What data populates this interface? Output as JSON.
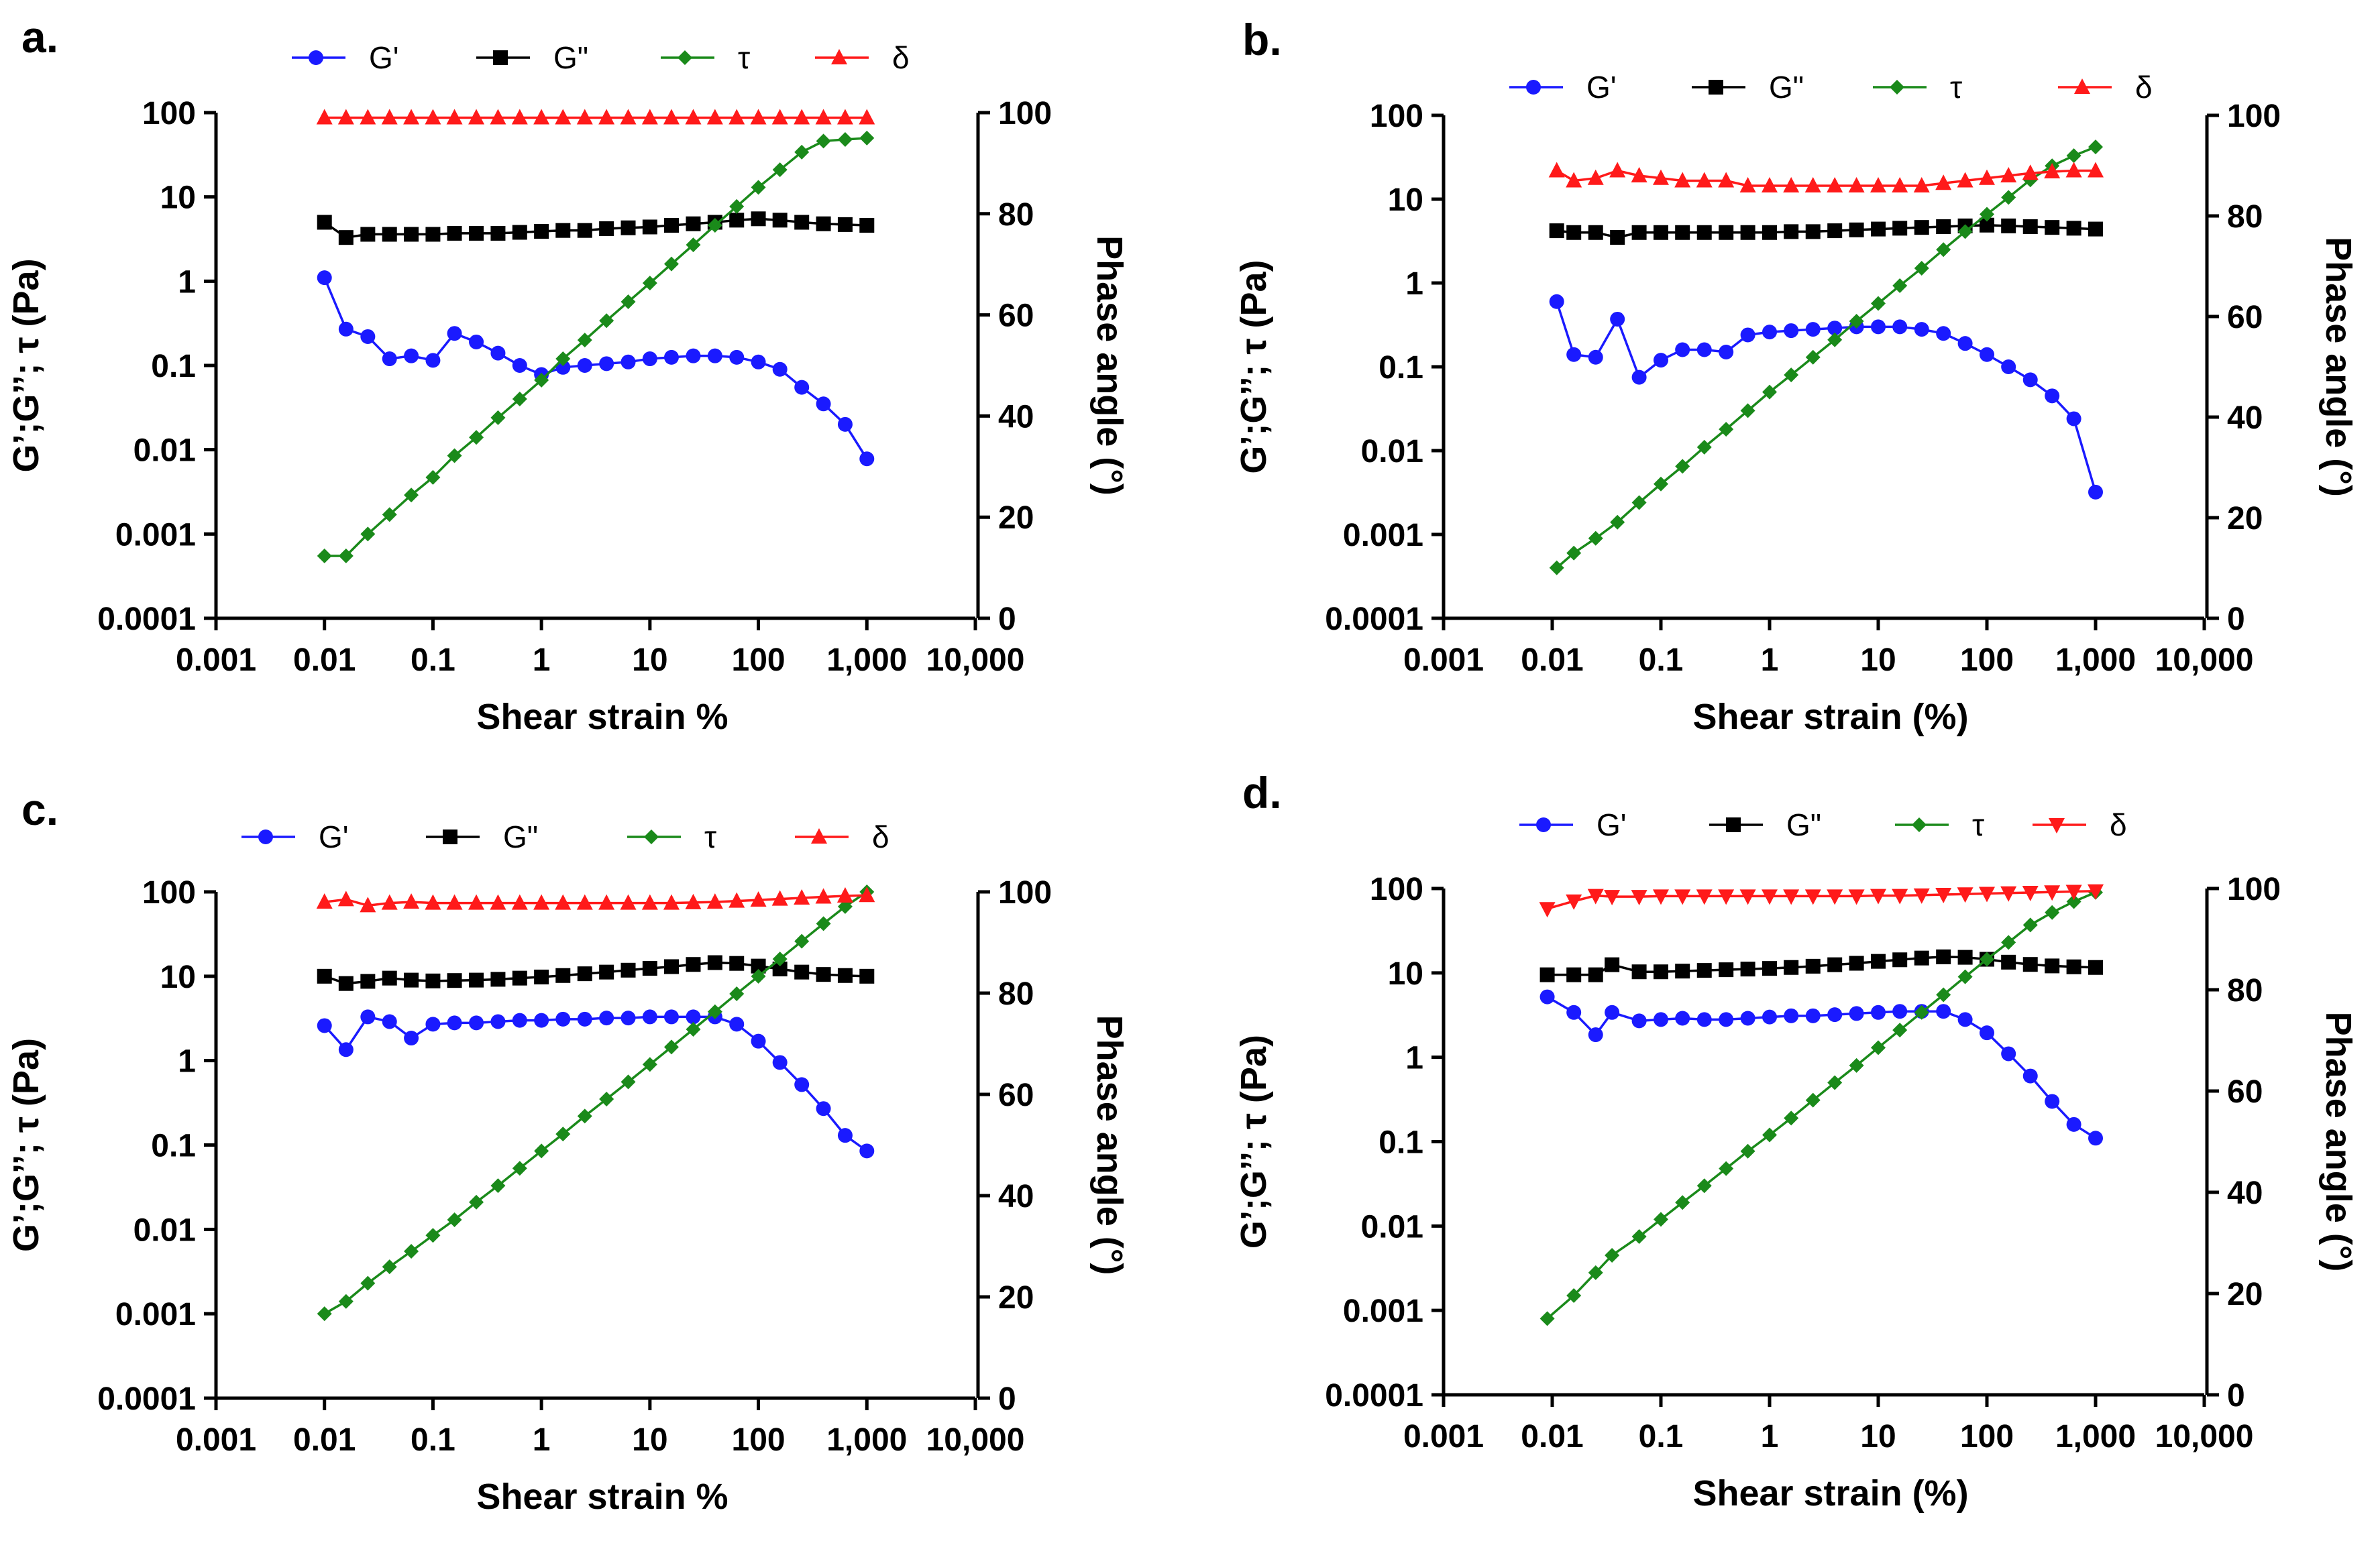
{
  "chart_data": [
    {
      "panel": "a.",
      "type": "line",
      "xscale": "log",
      "yscale": "log",
      "xlabel": "Shear strain %",
      "ylabel": "G’;G’’; τ (Pa)",
      "y2label": "Phase angle (°)",
      "xlim": [
        0.001,
        10000
      ],
      "ylim": [
        0.0001,
        100
      ],
      "y2lim": [
        0,
        100
      ],
      "x_tick_labels": [
        "0.001",
        "0.01",
        "0.1",
        "1",
        "10",
        "100",
        "1,000",
        "10,000"
      ],
      "y_tick_labels": [
        "0.0001",
        "0.001",
        "0.01",
        "0.1",
        "1",
        "10",
        "100"
      ],
      "y2_tick_labels": [
        "0",
        "20",
        "40",
        "60",
        "80",
        "100"
      ],
      "legend": [
        "G'",
        "G\"",
        "τ",
        "δ"
      ],
      "x": [
        0.01,
        0.0158,
        0.0251,
        0.0398,
        0.0631,
        0.1,
        0.158,
        0.251,
        0.398,
        0.631,
        1,
        1.58,
        2.51,
        3.98,
        6.31,
        10,
        15.8,
        25.1,
        39.8,
        63.1,
        100,
        158,
        251,
        398,
        631,
        1000
      ],
      "series": [
        {
          "name": "G'",
          "axis": "left",
          "color": "#1a1aff",
          "marker": "circle",
          "values": [
            1.1,
            0.27,
            0.22,
            0.12,
            0.13,
            0.115,
            0.24,
            0.19,
            0.14,
            0.1,
            0.078,
            0.095,
            0.1,
            0.105,
            0.11,
            0.12,
            0.125,
            0.13,
            0.13,
            0.125,
            0.11,
            0.09,
            0.055,
            0.035,
            0.02,
            0.0078
          ]
        },
        {
          "name": "G\"",
          "axis": "left",
          "color": "#000000",
          "marker": "square",
          "values": [
            5.0,
            3.3,
            3.6,
            3.6,
            3.6,
            3.6,
            3.7,
            3.7,
            3.7,
            3.8,
            3.9,
            4.0,
            4.0,
            4.2,
            4.3,
            4.4,
            4.6,
            4.8,
            5.0,
            5.3,
            5.5,
            5.3,
            5.0,
            4.8,
            4.7,
            4.6
          ]
        },
        {
          "name": "τ",
          "axis": "left",
          "color": "#1a8a1a",
          "marker": "diamond",
          "values": [
            0.00055,
            0.00055,
            0.001,
            0.0017,
            0.0029,
            0.0047,
            0.0085,
            0.014,
            0.024,
            0.04,
            0.067,
            0.12,
            0.2,
            0.34,
            0.57,
            0.95,
            1.6,
            2.7,
            4.6,
            7.7,
            13,
            21,
            34,
            46,
            48,
            50
          ]
        },
        {
          "name": "δ",
          "axis": "right",
          "color": "#ff1a1a",
          "marker": "triangle-up",
          "values": [
            99,
            99,
            99,
            99,
            99,
            99,
            99,
            99,
            99,
            99,
            99,
            99,
            99,
            99,
            99,
            99,
            99,
            99,
            99,
            99,
            99,
            99,
            99,
            99,
            99,
            99
          ]
        }
      ]
    },
    {
      "panel": "b.",
      "type": "line",
      "xscale": "log",
      "yscale": "log",
      "xlabel": "Shear strain (%)",
      "ylabel": "G’;G’’; τ (Pa)",
      "y2label": "Phase angle (°)",
      "xlim": [
        0.001,
        10000
      ],
      "ylim": [
        0.0001,
        100
      ],
      "y2lim": [
        0,
        100
      ],
      "x_tick_labels": [
        "0.001",
        "0.01",
        "0.1",
        "1",
        "10",
        "100",
        "1,000",
        "10,000"
      ],
      "y_tick_labels": [
        "0.0001",
        "0.001",
        "0.01",
        "0.1",
        "1",
        "10",
        "100"
      ],
      "y2_tick_labels": [
        "0",
        "20",
        "40",
        "60",
        "80",
        "100"
      ],
      "legend": [
        "G'",
        "G\"",
        "τ",
        "δ"
      ],
      "x": [
        0.011,
        0.0158,
        0.0251,
        0.0398,
        0.0631,
        0.1,
        0.158,
        0.251,
        0.398,
        0.631,
        1,
        1.58,
        2.51,
        3.98,
        6.31,
        10,
        15.8,
        25.1,
        39.8,
        63.1,
        100,
        158,
        251,
        398,
        631,
        1000
      ],
      "series": [
        {
          "name": "G'",
          "axis": "left",
          "color": "#1a1aff",
          "marker": "circle",
          "values": [
            0.6,
            0.14,
            0.13,
            0.37,
            0.075,
            0.12,
            0.16,
            0.16,
            0.15,
            0.24,
            0.26,
            0.27,
            0.28,
            0.29,
            0.3,
            0.3,
            0.3,
            0.28,
            0.25,
            0.19,
            0.14,
            0.1,
            0.07,
            0.045,
            0.024,
            0.0032
          ]
        },
        {
          "name": "G\"",
          "axis": "left",
          "color": "#000000",
          "marker": "square",
          "values": [
            4.2,
            4.0,
            4.0,
            3.5,
            4.0,
            4.0,
            4.0,
            4.0,
            4.0,
            4.0,
            4.0,
            4.1,
            4.1,
            4.2,
            4.3,
            4.4,
            4.5,
            4.6,
            4.7,
            4.8,
            4.9,
            4.8,
            4.7,
            4.6,
            4.5,
            4.4
          ]
        },
        {
          "name": "τ",
          "axis": "left",
          "color": "#1a8a1a",
          "marker": "diamond",
          "values": [
            0.0004,
            0.0006,
            0.0009,
            0.0014,
            0.0024,
            0.004,
            0.0065,
            0.011,
            0.018,
            0.03,
            0.05,
            0.08,
            0.13,
            0.21,
            0.35,
            0.57,
            0.93,
            1.5,
            2.5,
            4.1,
            6.6,
            10.5,
            17,
            25,
            33,
            42
          ]
        },
        {
          "name": "δ",
          "axis": "right",
          "color": "#ff1a1a",
          "marker": "triangle-up",
          "values": [
            89,
            87,
            87.5,
            89,
            88,
            87.5,
            87,
            87,
            87,
            86,
            86,
            86,
            86,
            86,
            86,
            86,
            86,
            86,
            86.5,
            87,
            87.5,
            88,
            88.5,
            88.8,
            89,
            89
          ]
        }
      ]
    },
    {
      "panel": "c.",
      "type": "line",
      "xscale": "log",
      "yscale": "log",
      "xlabel": "Shear strain %",
      "ylabel": "G’;G’’; τ (Pa)",
      "y2label": "Phase angle (°)",
      "xlim": [
        0.001,
        10000
      ],
      "ylim": [
        0.0001,
        100
      ],
      "y2lim": [
        0,
        100
      ],
      "x_tick_labels": [
        "0.001",
        "0.01",
        "0.1",
        "1",
        "10",
        "100",
        "1,000",
        "10,000"
      ],
      "y_tick_labels": [
        "0.0001",
        "0.001",
        "0.01",
        "0.1",
        "1",
        "10",
        "100"
      ],
      "y2_tick_labels": [
        "0",
        "20",
        "40",
        "60",
        "80",
        "100"
      ],
      "legend": [
        "G'",
        "G\"",
        "τ",
        "δ"
      ],
      "x": [
        0.01,
        0.0158,
        0.0251,
        0.0398,
        0.0631,
        0.1,
        0.158,
        0.251,
        0.398,
        0.631,
        1,
        1.58,
        2.51,
        3.98,
        6.31,
        10,
        15.8,
        25.1,
        39.8,
        63.1,
        100,
        158,
        251,
        398,
        631,
        1000
      ],
      "series": [
        {
          "name": "G'",
          "axis": "left",
          "color": "#1a1aff",
          "marker": "circle",
          "values": [
            2.6,
            1.35,
            3.3,
            2.9,
            1.85,
            2.7,
            2.8,
            2.8,
            2.9,
            3.0,
            3.0,
            3.1,
            3.1,
            3.2,
            3.2,
            3.3,
            3.3,
            3.3,
            3.3,
            2.7,
            1.7,
            0.95,
            0.52,
            0.27,
            0.13,
            0.085
          ]
        },
        {
          "name": "G\"",
          "axis": "left",
          "color": "#000000",
          "marker": "square",
          "values": [
            10,
            8.2,
            8.7,
            9.5,
            9.0,
            8.8,
            8.9,
            9.0,
            9.2,
            9.5,
            9.8,
            10.2,
            10.7,
            11.2,
            11.8,
            12.4,
            13.0,
            13.8,
            14.5,
            14.2,
            13.2,
            12.2,
            11.2,
            10.5,
            10.2,
            10.0
          ]
        },
        {
          "name": "τ",
          "axis": "left",
          "color": "#1a8a1a",
          "marker": "diamond",
          "values": [
            0.001,
            0.0014,
            0.0023,
            0.0036,
            0.0055,
            0.0085,
            0.013,
            0.021,
            0.033,
            0.053,
            0.085,
            0.135,
            0.22,
            0.35,
            0.56,
            0.9,
            1.45,
            2.35,
            3.8,
            6.2,
            10,
            16,
            26,
            42,
            67,
            100
          ]
        },
        {
          "name": "δ",
          "axis": "right",
          "color": "#ff1a1a",
          "marker": "triangle-up",
          "values": [
            98,
            98.5,
            97.3,
            97.8,
            98,
            97.8,
            97.8,
            97.8,
            97.8,
            97.8,
            97.8,
            97.8,
            97.8,
            97.8,
            97.8,
            97.8,
            97.8,
            97.9,
            98,
            98.2,
            98.4,
            98.6,
            98.8,
            99,
            99.2,
            99.3
          ]
        }
      ]
    },
    {
      "panel": "d.",
      "type": "line",
      "xscale": "log",
      "yscale": "log",
      "xlabel": "Shear strain (%)",
      "ylabel": "G’;G’’; τ (Pa)",
      "y2label": "Phase angle (°)",
      "xlim": [
        0.001,
        10000
      ],
      "ylim": [
        0.0001,
        100
      ],
      "y2lim": [
        0,
        100
      ],
      "x_tick_labels": [
        "0.001",
        "0.01",
        "0.1",
        "1",
        "10",
        "100",
        "1,000",
        "10,000"
      ],
      "y_tick_labels": [
        "0.0001",
        "0.001",
        "0.01",
        "0.1",
        "1",
        "10",
        "100"
      ],
      "y2_tick_labels": [
        "0",
        "20",
        "40",
        "60",
        "80",
        "100"
      ],
      "legend": [
        "G'",
        "G\"",
        "τ",
        "δ"
      ],
      "x": [
        0.009,
        0.0158,
        0.0251,
        0.0355,
        0.0631,
        0.1,
        0.158,
        0.251,
        0.398,
        0.631,
        1,
        1.58,
        2.51,
        3.98,
        6.31,
        10,
        15.8,
        25.1,
        39.8,
        63.1,
        100,
        158,
        251,
        398,
        631,
        1000
      ],
      "series": [
        {
          "name": "G'",
          "axis": "left",
          "color": "#1a1aff",
          "marker": "circle",
          "values": [
            5.2,
            3.4,
            1.85,
            3.4,
            2.7,
            2.8,
            2.9,
            2.8,
            2.8,
            2.9,
            3.0,
            3.1,
            3.1,
            3.2,
            3.3,
            3.4,
            3.5,
            3.5,
            3.5,
            2.8,
            1.95,
            1.1,
            0.6,
            0.3,
            0.16,
            0.11
          ]
        },
        {
          "name": "G\"",
          "axis": "left",
          "color": "#000000",
          "marker": "square",
          "values": [
            9.5,
            9.5,
            9.5,
            12.5,
            10.3,
            10.3,
            10.5,
            10.7,
            10.9,
            11.1,
            11.3,
            11.6,
            12.0,
            12.5,
            13.0,
            13.7,
            14.3,
            15.0,
            15.5,
            15.3,
            14.5,
            13.4,
            12.6,
            12.1,
            11.8,
            11.6
          ]
        },
        {
          "name": "τ",
          "axis": "left",
          "color": "#1a8a1a",
          "marker": "diamond",
          "values": [
            0.0008,
            0.0015,
            0.0028,
            0.0045,
            0.0075,
            0.012,
            0.019,
            0.03,
            0.048,
            0.077,
            0.12,
            0.19,
            0.31,
            0.5,
            0.8,
            1.3,
            2.1,
            3.4,
            5.5,
            9,
            14.5,
            23,
            37,
            52,
            70,
            90
          ]
        },
        {
          "name": "δ",
          "axis": "right",
          "color": "#ff1a1a",
          "marker": "triangle-down",
          "values": [
            96,
            97.5,
            98.6,
            98.4,
            98.4,
            98.5,
            98.5,
            98.5,
            98.5,
            98.5,
            98.5,
            98.5,
            98.5,
            98.5,
            98.5,
            98.6,
            98.6,
            98.7,
            98.8,
            98.9,
            99,
            99.1,
            99.2,
            99.3,
            99.4,
            99.5
          ]
        }
      ]
    }
  ]
}
